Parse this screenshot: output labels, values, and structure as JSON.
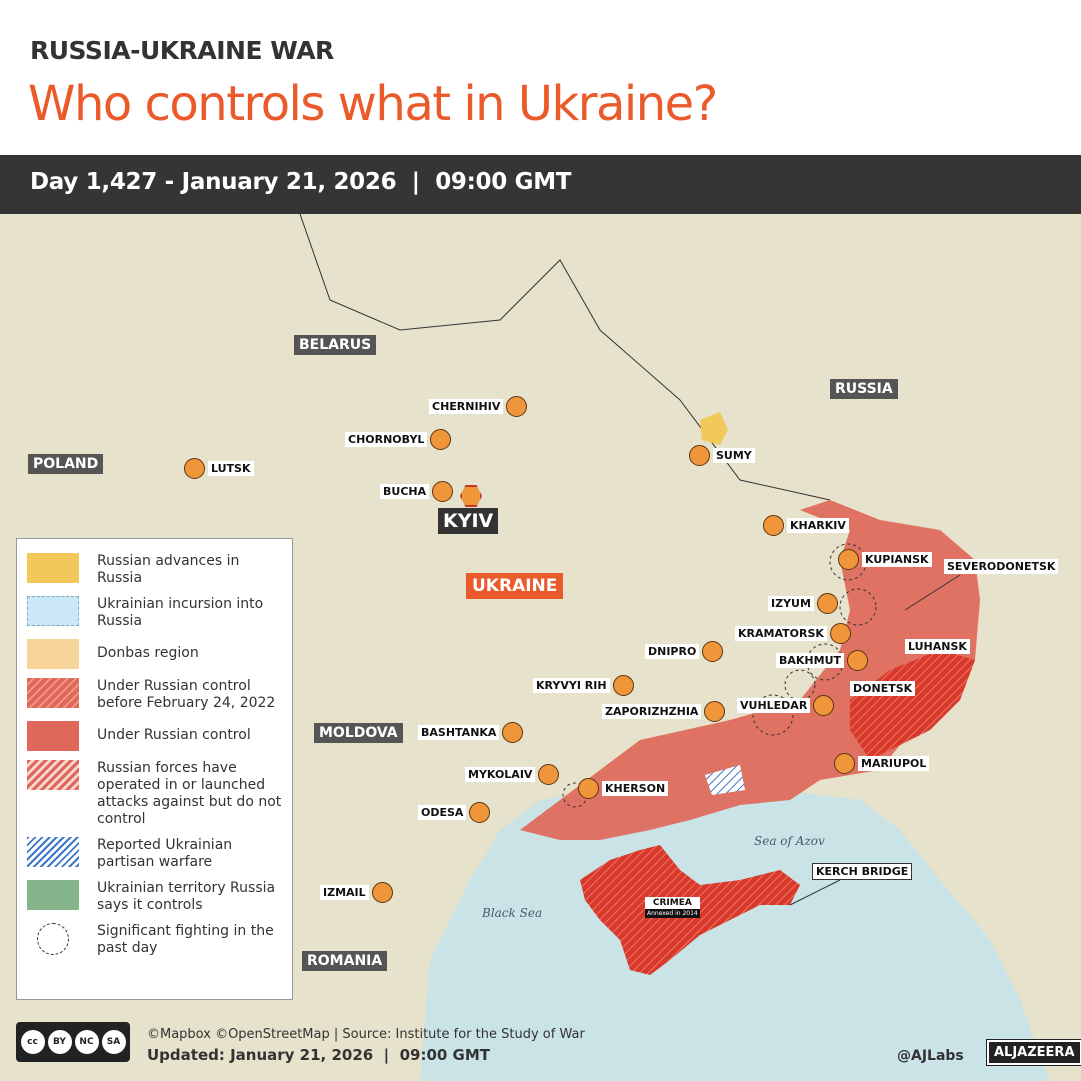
{
  "header": {
    "kicker": "RUSSIA-UKRAINE WAR",
    "title": "Who controls what in Ukraine?",
    "dayline": "Day 1,427 - January 21, 2026  |  09:00 GMT"
  },
  "colors": {
    "accent": "#ea5a2b",
    "russian_control": "#e0685a",
    "crimea": "#d8392b",
    "donbas": "#f6d49a",
    "advances": "#f2c85a",
    "city_dot": "#f0963a",
    "sea": "#c9e3e6"
  },
  "map": {
    "countries": [
      "BELARUS",
      "RUSSIA",
      "POLAND",
      "MOLDOVA",
      "ROMANIA",
      "UKRAINE"
    ],
    "capital": "KYIV",
    "cities": [
      "CHERNIHIV",
      "CHORNOBYL",
      "LUTSK",
      "BUCHA",
      "SUMY",
      "KHARKIV",
      "KUPIANSK",
      "SEVERODONETSK",
      "IZYUM",
      "KRAMATORSK",
      "LUHANSK",
      "BAKHMUT",
      "DNIPRO",
      "KRYVYI RIH",
      "DONETSK",
      "ZAPORIZHZHIA",
      "VUHLEDAR",
      "BASHTANKA",
      "MARIUPOL",
      "MYKOLAIV",
      "KHERSON",
      "ODESA",
      "IZMAIL",
      "KERCH BRIDGE"
    ],
    "crimea": {
      "label": "CRIMEA",
      "note": "Annexed in 2014"
    },
    "seas": [
      "Sea of Azov",
      "Black Sea"
    ]
  },
  "legend": [
    {
      "label": "Russian advances in Russia",
      "icon": "solid-yellow"
    },
    {
      "label": "Ukrainian incursion into Russia",
      "icon": "light-blue-dashed"
    },
    {
      "label": "Donbas region",
      "icon": "solid-tan"
    },
    {
      "label": "Under Russian control before February 24, 2022",
      "icon": "red-hatched"
    },
    {
      "label": "Under Russian control",
      "icon": "solid-red"
    },
    {
      "label": "Russian forces have operated in or launched attacks against but do not control",
      "icon": "light-red-hatched"
    },
    {
      "label": "Reported Ukrainian partisan warfare",
      "icon": "blue-hatched"
    },
    {
      "label": "Ukrainian territory Russia says it controls",
      "icon": "solid-green"
    },
    {
      "label": "Significant fighting in the past day",
      "icon": "dashed-circle"
    }
  ],
  "footer": {
    "credits": "©Mapbox ©OpenStreetMap | Source: Institute for the Study of War",
    "updated": "Updated: January 21, 2026  |  09:00 GMT",
    "handle": "@AJLabs",
    "logo": "ALJAZEERA",
    "license": [
      "BY",
      "NC",
      "SA"
    ]
  }
}
